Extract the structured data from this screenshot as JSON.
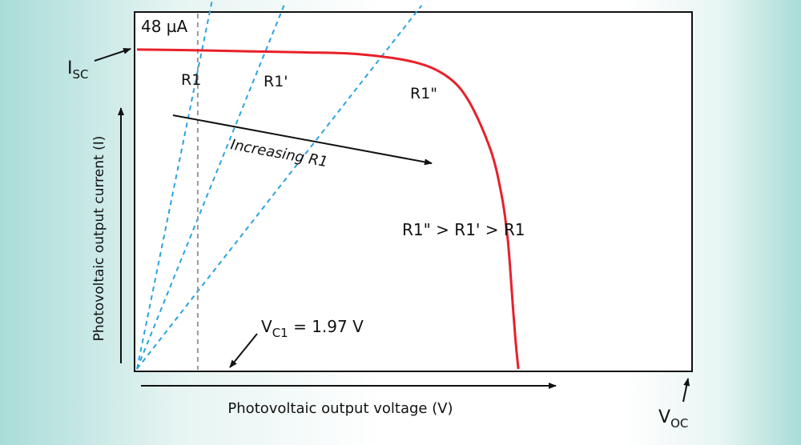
{
  "chart_data": {
    "type": "line",
    "title": "",
    "xlabel": "Photovoltaic output voltage (V)",
    "ylabel": "Photovoltaic output current (I)",
    "units": {
      "current": "µA",
      "voltage": "V"
    },
    "max_current_label": "48 µA",
    "isc_label": {
      "main": "I",
      "sub": "SC"
    },
    "voc_label": {
      "main": "V",
      "sub": "OC"
    },
    "vc1": {
      "value": 1.97,
      "label_main": "V",
      "label_sub": "C1",
      "label_value": " = 1.97 V"
    },
    "xlim": [
      0,
      1
    ],
    "ylim": [
      0,
      1
    ],
    "iv_curve": {
      "name": "Photovoltaic I-V curve",
      "color": "#e8202a",
      "x": [
        0,
        0.1,
        0.2,
        0.3,
        0.4,
        0.5,
        0.56,
        0.6,
        0.64,
        0.66,
        0.67,
        0.675,
        0.68,
        0.685,
        0.69
      ],
      "y": [
        0.905,
        0.903,
        0.9,
        0.897,
        0.892,
        0.87,
        0.83,
        0.76,
        0.62,
        0.49,
        0.38,
        0.29,
        0.18,
        0.08,
        0.0
      ]
    },
    "load_lines": [
      {
        "name": "R1",
        "label": "R1",
        "color": "#2aa3e0",
        "end": [
          0.138,
          1.06
        ]
      },
      {
        "name": "R1'",
        "label": "R1'",
        "color": "#2aa3e0",
        "end": [
          0.266,
          1.03
        ]
      },
      {
        "name": "R1''",
        "label": "R1\"",
        "color": "#2aa3e0",
        "end": [
          0.515,
          1.03
        ]
      }
    ],
    "vc1_line_x": 0.11,
    "annotations": {
      "increasing": "Increasing R1",
      "inequality": "R1\" > R1' > R1"
    }
  }
}
